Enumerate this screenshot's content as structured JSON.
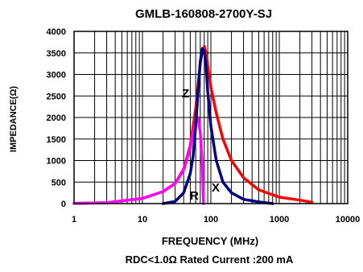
{
  "chart_data": {
    "type": "line",
    "title": "GMLB-160808-2700Y-SJ",
    "xlabel": "FREQUENCY (MHz)",
    "ylabel": "IMPEDANCE(Ω)",
    "footnote": "RDC<1.0Ω Rated Current :200 mA",
    "xscale": "log",
    "xlim": [
      1,
      10000
    ],
    "ylim": [
      0,
      4000
    ],
    "grid": true,
    "x_ticks": [
      1,
      10,
      100,
      1000,
      10000
    ],
    "x_tick_labels": [
      "1",
      "10",
      "100",
      "1000",
      "10000"
    ],
    "y_ticks": [
      0,
      500,
      1000,
      1500,
      2000,
      2500,
      3000,
      3500,
      4000
    ],
    "y_tick_labels": [
      "0",
      "500",
      "1000",
      "1500",
      "2000",
      "2500",
      "3000",
      "3500",
      "4000"
    ],
    "annotations": [
      "Z",
      "R",
      "X"
    ],
    "series": [
      {
        "name": "Z",
        "color": "#ff0000",
        "x": [
          1,
          3,
          10,
          20,
          30,
          40,
          50,
          60,
          65,
          70,
          75,
          80,
          85,
          90,
          100,
          120,
          150,
          200,
          300,
          500,
          1000,
          2000,
          3000
        ],
        "y": [
          5,
          20,
          120,
          280,
          470,
          800,
          1350,
          2200,
          2750,
          3250,
          3550,
          3650,
          3500,
          3200,
          2700,
          2100,
          1500,
          1000,
          600,
          320,
          150,
          80,
          30
        ]
      },
      {
        "name": "X",
        "color": "#ff00ff",
        "x": [
          1,
          3,
          10,
          20,
          30,
          40,
          50,
          55,
          60,
          65,
          70,
          75,
          78
        ],
        "y": [
          5,
          20,
          120,
          280,
          470,
          780,
          1300,
          1650,
          1950,
          2000,
          1650,
          900,
          0
        ]
      },
      {
        "name": "R",
        "color": "#000080",
        "x": [
          20,
          30,
          40,
          50,
          55,
          60,
          65,
          70,
          75,
          80,
          85,
          90,
          100,
          120,
          150,
          200,
          300,
          500,
          800
        ],
        "y": [
          0,
          50,
          250,
          700,
          1100,
          1800,
          2600,
          3300,
          3600,
          3550,
          3200,
          2600,
          1800,
          1000,
          500,
          250,
          100,
          40,
          0
        ]
      }
    ]
  }
}
